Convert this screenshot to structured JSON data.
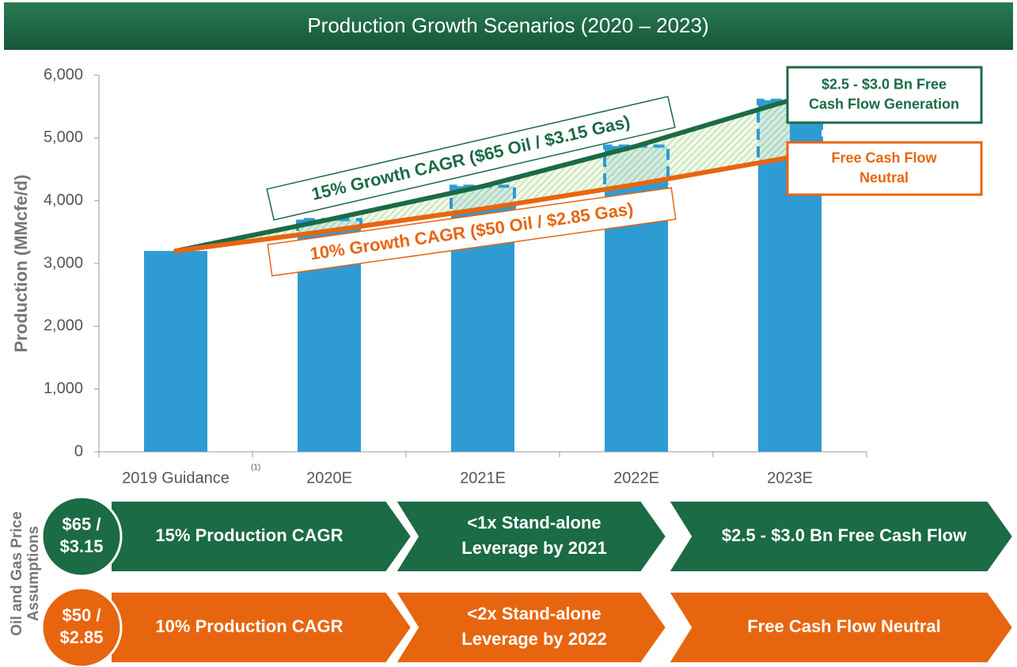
{
  "chart_data": {
    "type": "bar",
    "title": "Production Growth Scenarios (2020 – 2023)",
    "y_label": "Production (MMcfe/d)",
    "categories": [
      "2019 Guidance",
      "2020E",
      "2021E",
      "2022E",
      "2023E"
    ],
    "footnote_mark": "(1)",
    "bar_color": "#2f9bd3",
    "values": [
      3200,
      3700,
      4230,
      4870,
      5600
    ],
    "series": [
      {
        "color": "#1b6b45",
        "values": [
          3200,
          3700,
          4230,
          4870,
          5600
        ]
      },
      {
        "color": "#e8650f",
        "values": [
          3200,
          3520,
          3870,
          4260,
          4690
        ]
      }
    ],
    "ylim": [
      0,
      6000
    ],
    "yticks": [
      0,
      {
        "value": 1000,
        "label": "1,000"
      },
      {
        "value": 2000,
        "label": "2,000"
      },
      {
        "value": 3000,
        "label": "3,000"
      },
      {
        "value": 4000,
        "label": "4,000"
      },
      {
        "value": 5000,
        "label": "5,000"
      },
      {
        "value": 6000,
        "label": "6,000"
      }
    ],
    "annotations": [
      {
        "text": "15% Growth CAGR ($65 Oil / $3.15 Gas)",
        "color": "#1b6b45"
      },
      {
        "text": "10% Growth CAGR ($50 Oil / $2.85 Gas)",
        "color": "#e8650f"
      }
    ],
    "callouts": [
      {
        "lines": [
          "$2.5 - $3.0 Bn Free",
          "Cash Flow Generation"
        ],
        "color": "#1b6b45"
      },
      {
        "lines": [
          "Free Cash Flow",
          "Neutral"
        ],
        "color": "#e8650f"
      }
    ]
  },
  "assumptions": {
    "label_lines": [
      "Oil and Gas Price",
      "Assumptions"
    ],
    "rows": [
      {
        "color": "#1b6b45",
        "price_lines": [
          "$65 /",
          "$3.15"
        ],
        "steps": [
          [
            "15% Production CAGR"
          ],
          [
            "<1x Stand-alone",
            "Leverage by 2021"
          ],
          [
            "$2.5 - $3.0 Bn Free Cash Flow"
          ]
        ]
      },
      {
        "color": "#e8650f",
        "price_lines": [
          "$50 /",
          "$2.85"
        ],
        "steps": [
          [
            "10% Production CAGR"
          ],
          [
            "<2x Stand-alone",
            "Leverage by 2022"
          ],
          [
            "Free Cash Flow Neutral"
          ]
        ]
      }
    ]
  }
}
